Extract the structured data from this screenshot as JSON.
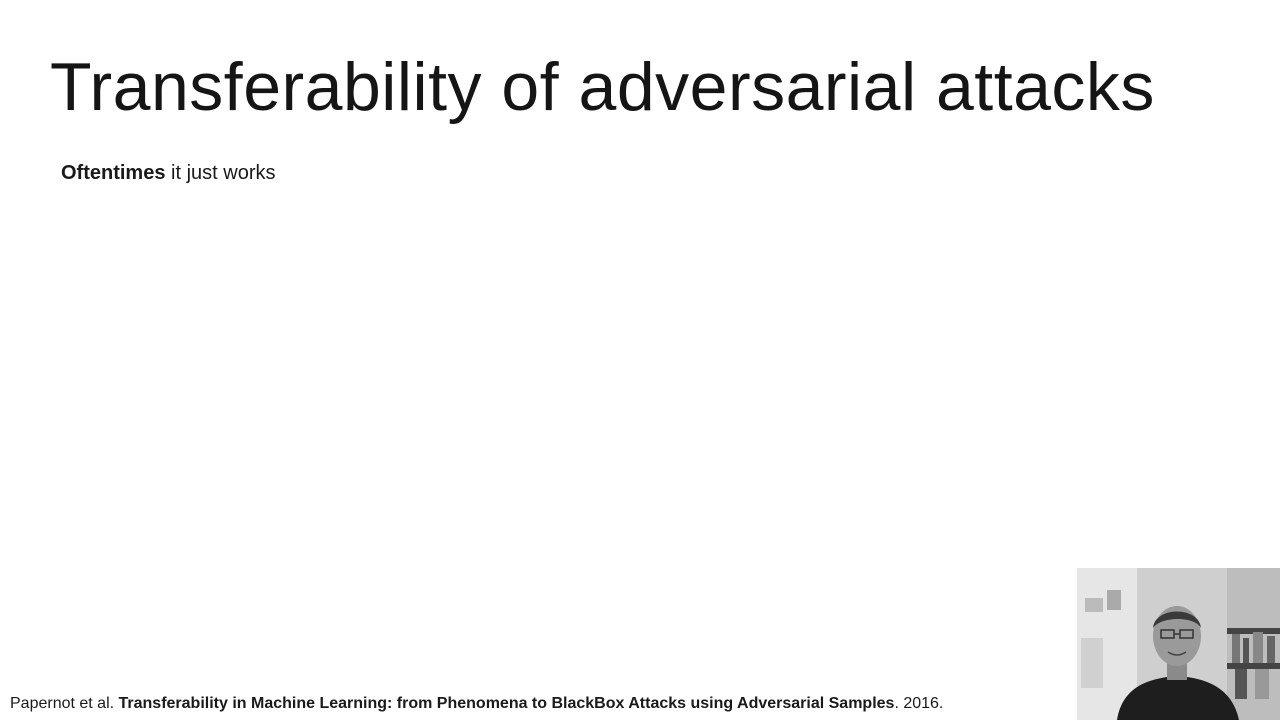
{
  "slide": {
    "title": "Transferability of adversarial attacks",
    "subtitle": {
      "bold": "Oftentimes",
      "rest": " it just works"
    },
    "citation": {
      "authors": "Papernot et al. ",
      "paper_title": "Transferability in Machine Learning: from Phenomena to BlackBox Attacks using Adversarial Samples",
      "year": ". 2016."
    }
  },
  "webcam": {
    "icon": "presenter-video-feed"
  }
}
